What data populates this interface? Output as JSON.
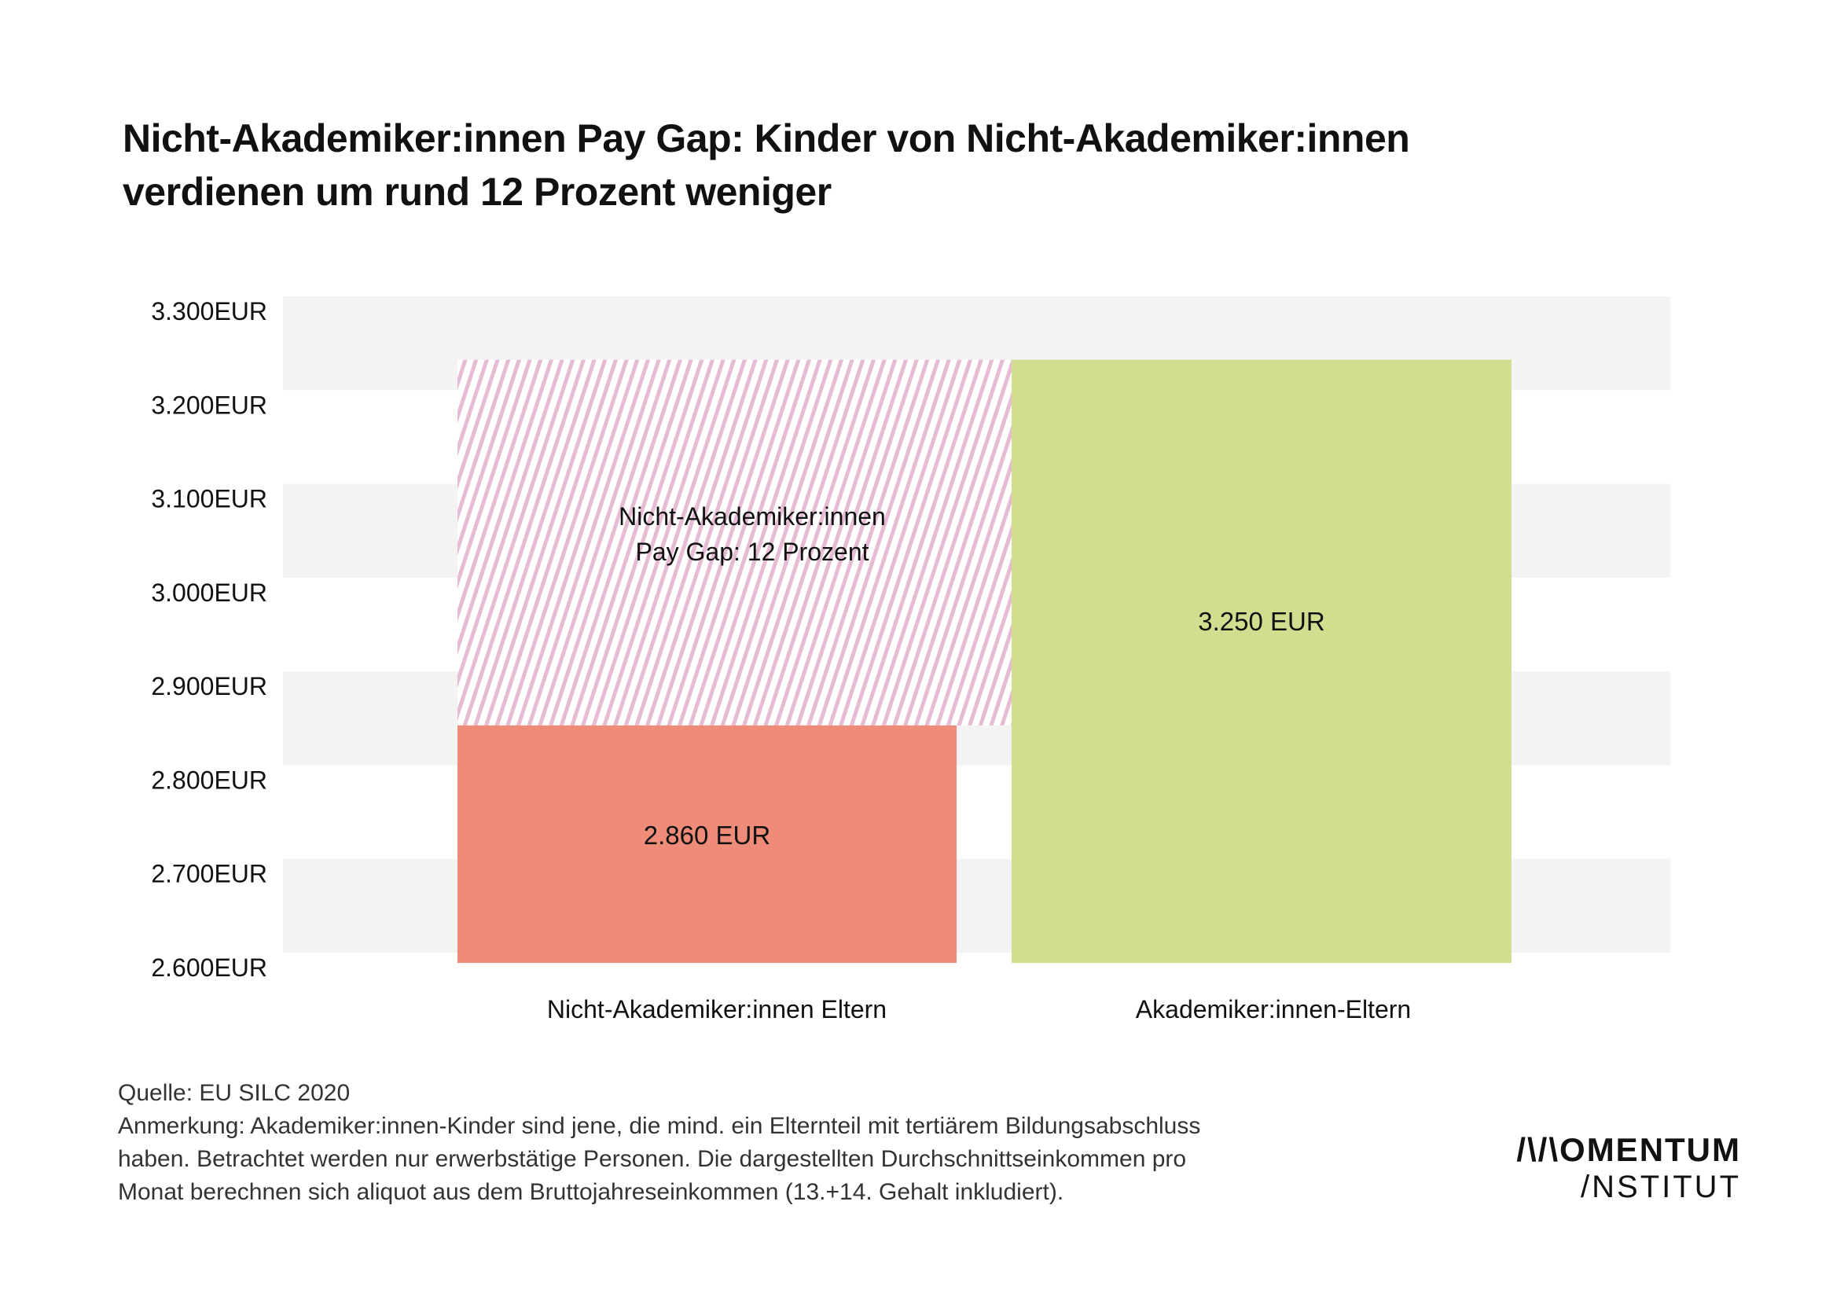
{
  "title_lines": [
    "Nicht-Akademiker:innen Pay Gap: Kinder von Nicht-Akademiker:innen",
    "verdienen um rund 12 Prozent weniger"
  ],
  "chart_data": {
    "type": "bar",
    "categories": [
      "Nicht-Akademiker:innen Eltern",
      "Akademiker:innen-Eltern"
    ],
    "values": [
      2860,
      3250
    ],
    "value_labels": [
      "2.860 EUR",
      "3.250 EUR"
    ],
    "ylim": [
      2600,
      3300
    ],
    "yticks": [
      {
        "value": 3300,
        "label": "3.300EUR"
      },
      {
        "value": 3200,
        "label": "3.200EUR"
      },
      {
        "value": 3100,
        "label": "3.100EUR"
      },
      {
        "value": 3000,
        "label": "3.000EUR"
      },
      {
        "value": 2900,
        "label": "2.900EUR"
      },
      {
        "value": 2800,
        "label": "2.800EUR"
      },
      {
        "value": 2700,
        "label": "2.700EUR"
      },
      {
        "value": 2600,
        "label": "2.600EUR"
      }
    ],
    "gap_annotation": {
      "lines": [
        "Nicht-Akademiker:innen",
        "Pay Gap: 12 Prozent"
      ],
      "from": 2860,
      "to": 3250
    },
    "colors": {
      "bar_non_academic": "#ee8c79",
      "bar_academic": "#d1de90",
      "gap_hatch": "#e6bcd4",
      "band": "#f3f3f3"
    },
    "grid": "alternating horizontal bands"
  },
  "source": "Quelle: EU SILC 2020",
  "note_lines": [
    "Anmerkung: Akademiker:innen-Kinder sind jene, die mind. ein Elternteil mit tertiärem Bildungsabschluss",
    "haben. Betrachtet werden nur erwerbstätige Personen. Die dargestellten Durchschnittseinkommen pro",
    "Monat berechnen sich aliquot aus dem Bruttojahreseinkommen (13.+14. Gehalt inkludiert)."
  ],
  "logo": {
    "line1": "/\\/\\OMENTUM",
    "line2": "/NSTITUT"
  }
}
